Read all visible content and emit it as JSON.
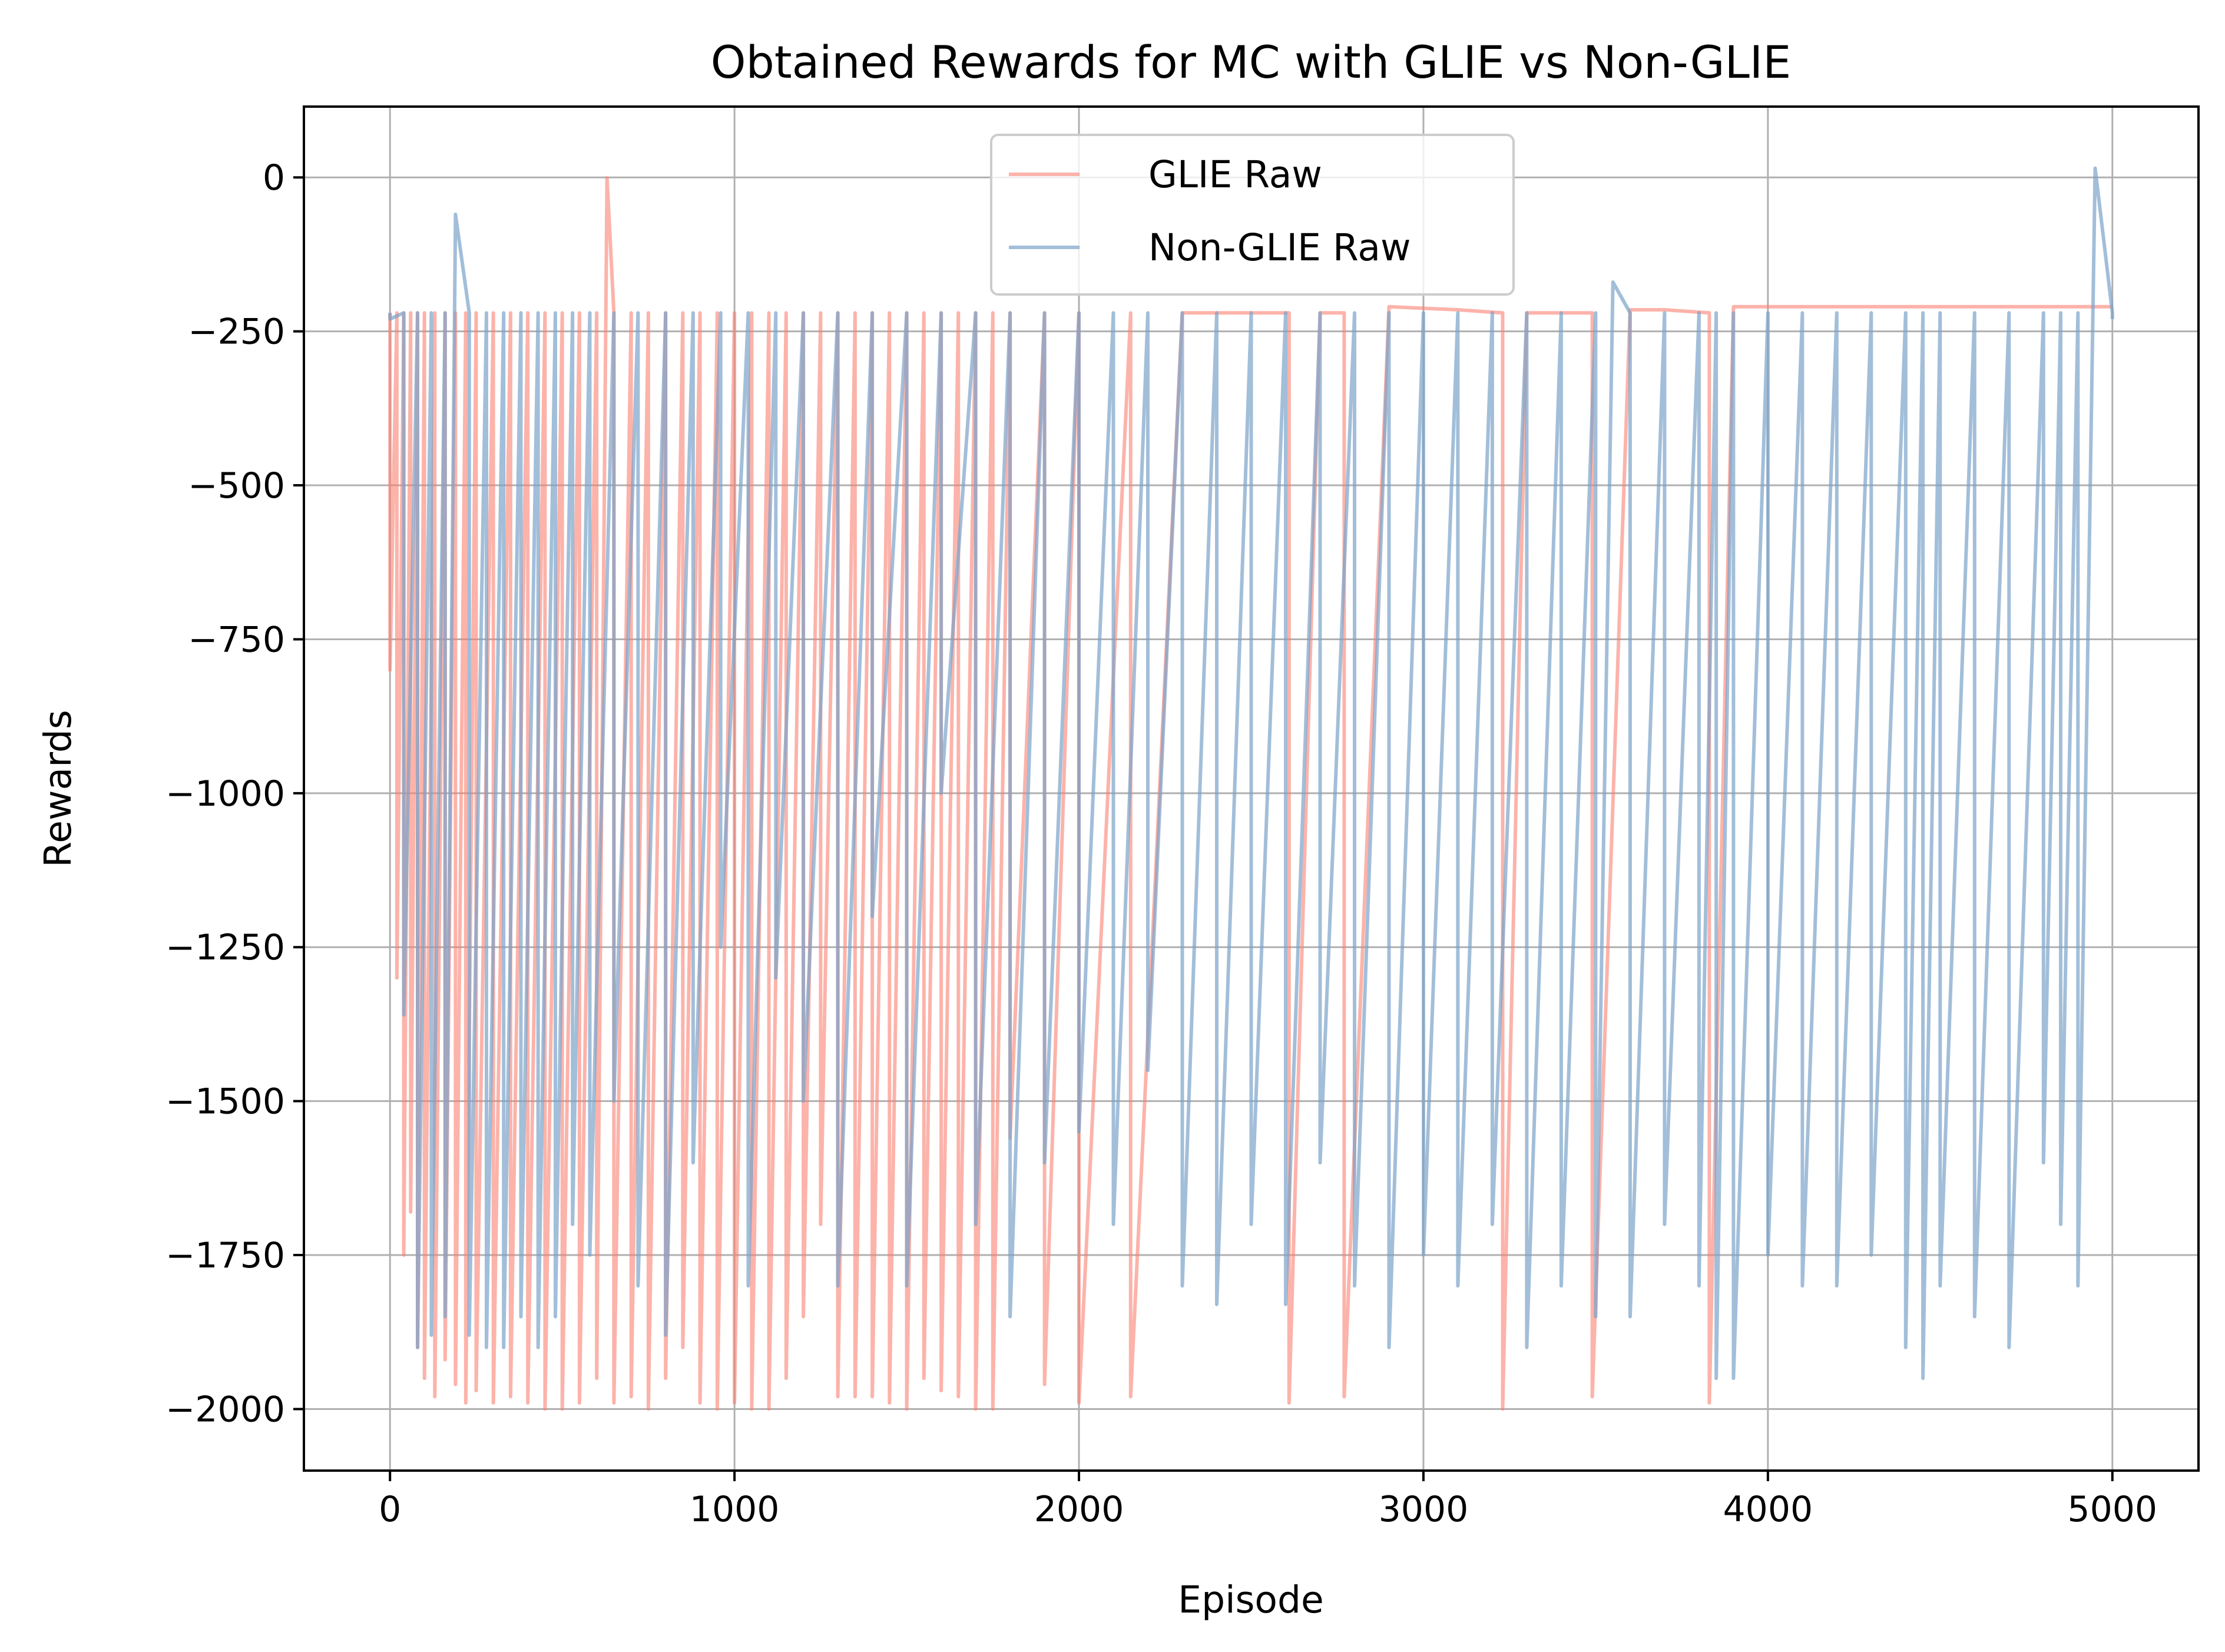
{
  "chart_data": {
    "type": "line",
    "title": "Obtained Rewards for MC with GLIE vs Non-GLIE",
    "xlabel": "Episode",
    "ylabel": "Rewards",
    "xlim": [
      -250,
      5250
    ],
    "ylim": [
      -2100,
      115
    ],
    "xticks": [
      0,
      1000,
      2000,
      3000,
      4000,
      5000
    ],
    "yticks": [
      0,
      -250,
      -500,
      -750,
      -1000,
      -1250,
      -1500,
      -1750,
      -2000
    ],
    "grid": true,
    "legend_position": "upper center",
    "series": [
      {
        "name": "GLIE Raw",
        "color": "#fa8072",
        "alpha": 0.6,
        "x": [
          0,
          20,
          40,
          60,
          80,
          100,
          130,
          160,
          190,
          220,
          250,
          300,
          350,
          400,
          450,
          500,
          550,
          600,
          630,
          650,
          700,
          750,
          800,
          850,
          900,
          950,
          1000,
          1050,
          1100,
          1150,
          1200,
          1250,
          1300,
          1350,
          1400,
          1450,
          1500,
          1550,
          1600,
          1650,
          1700,
          1750,
          1800,
          1900,
          2000,
          2150,
          2300,
          2500,
          2610,
          2700,
          2770,
          2900,
          3100,
          3230,
          3300,
          3490,
          3600,
          3700,
          3830,
          3900,
          4100,
          4300,
          4500,
          4700,
          4900,
          5000
        ],
        "y": [
          -800,
          -1300,
          -1750,
          -1680,
          -1900,
          -1950,
          -1980,
          -1920,
          -1960,
          -1990,
          -1970,
          -1990,
          -1980,
          -1990,
          -2000,
          -2000,
          -1990,
          -1950,
          -1,
          -1990,
          -1980,
          -2000,
          -1950,
          -1900,
          -1990,
          -2000,
          -1990,
          -2000,
          -2000,
          -1950,
          -1850,
          -1700,
          -1980,
          -1980,
          -1980,
          -1990,
          -2000,
          -1950,
          -1970,
          -1980,
          -2000,
          -2000,
          -1560,
          -1960,
          -1990,
          -1980,
          -220,
          -220,
          -1990,
          -220,
          -1980,
          -210,
          -215,
          -2000,
          -220,
          -1980,
          -215,
          -215,
          -1990,
          -210,
          -210,
          -210,
          -210,
          -210,
          -210,
          -210
        ]
      },
      {
        "name": "Non-GLIE Raw",
        "color": "#7ba3c9",
        "alpha": 0.7,
        "x": [
          0,
          40,
          80,
          120,
          160,
          190,
          230,
          280,
          330,
          380,
          430,
          480,
          530,
          580,
          650,
          720,
          800,
          880,
          960,
          1040,
          1120,
          1200,
          1300,
          1400,
          1500,
          1600,
          1700,
          1800,
          1900,
          2000,
          2100,
          2200,
          2300,
          2400,
          2500,
          2600,
          2700,
          2800,
          2900,
          3000,
          3100,
          3200,
          3300,
          3400,
          3500,
          3550,
          3600,
          3700,
          3800,
          3850,
          3900,
          4000,
          4100,
          4200,
          4300,
          4400,
          4450,
          4500,
          4600,
          4700,
          4800,
          4850,
          4900,
          4950,
          5000
        ],
        "y": [
          -230,
          -1360,
          -1900,
          -1880,
          -1850,
          -60,
          -1880,
          -1900,
          -1900,
          -1850,
          -1900,
          -1850,
          -1700,
          -1750,
          -1500,
          -1800,
          -1880,
          -1600,
          -1250,
          -1800,
          -1300,
          -1500,
          -1800,
          -1200,
          -1800,
          -1000,
          -1700,
          -1850,
          -1600,
          -1550,
          -1700,
          -1450,
          -1800,
          -1830,
          -1700,
          -1830,
          -1600,
          -1800,
          -1900,
          -1750,
          -1800,
          -1700,
          -1900,
          -1800,
          -1850,
          -170,
          -1850,
          -1700,
          -1800,
          -1950,
          -1950,
          -1750,
          -1800,
          -1800,
          -1750,
          -1900,
          -1950,
          -1800,
          -1850,
          -1900,
          -1600,
          -1700,
          -1800,
          15,
          -230
        ]
      }
    ]
  }
}
